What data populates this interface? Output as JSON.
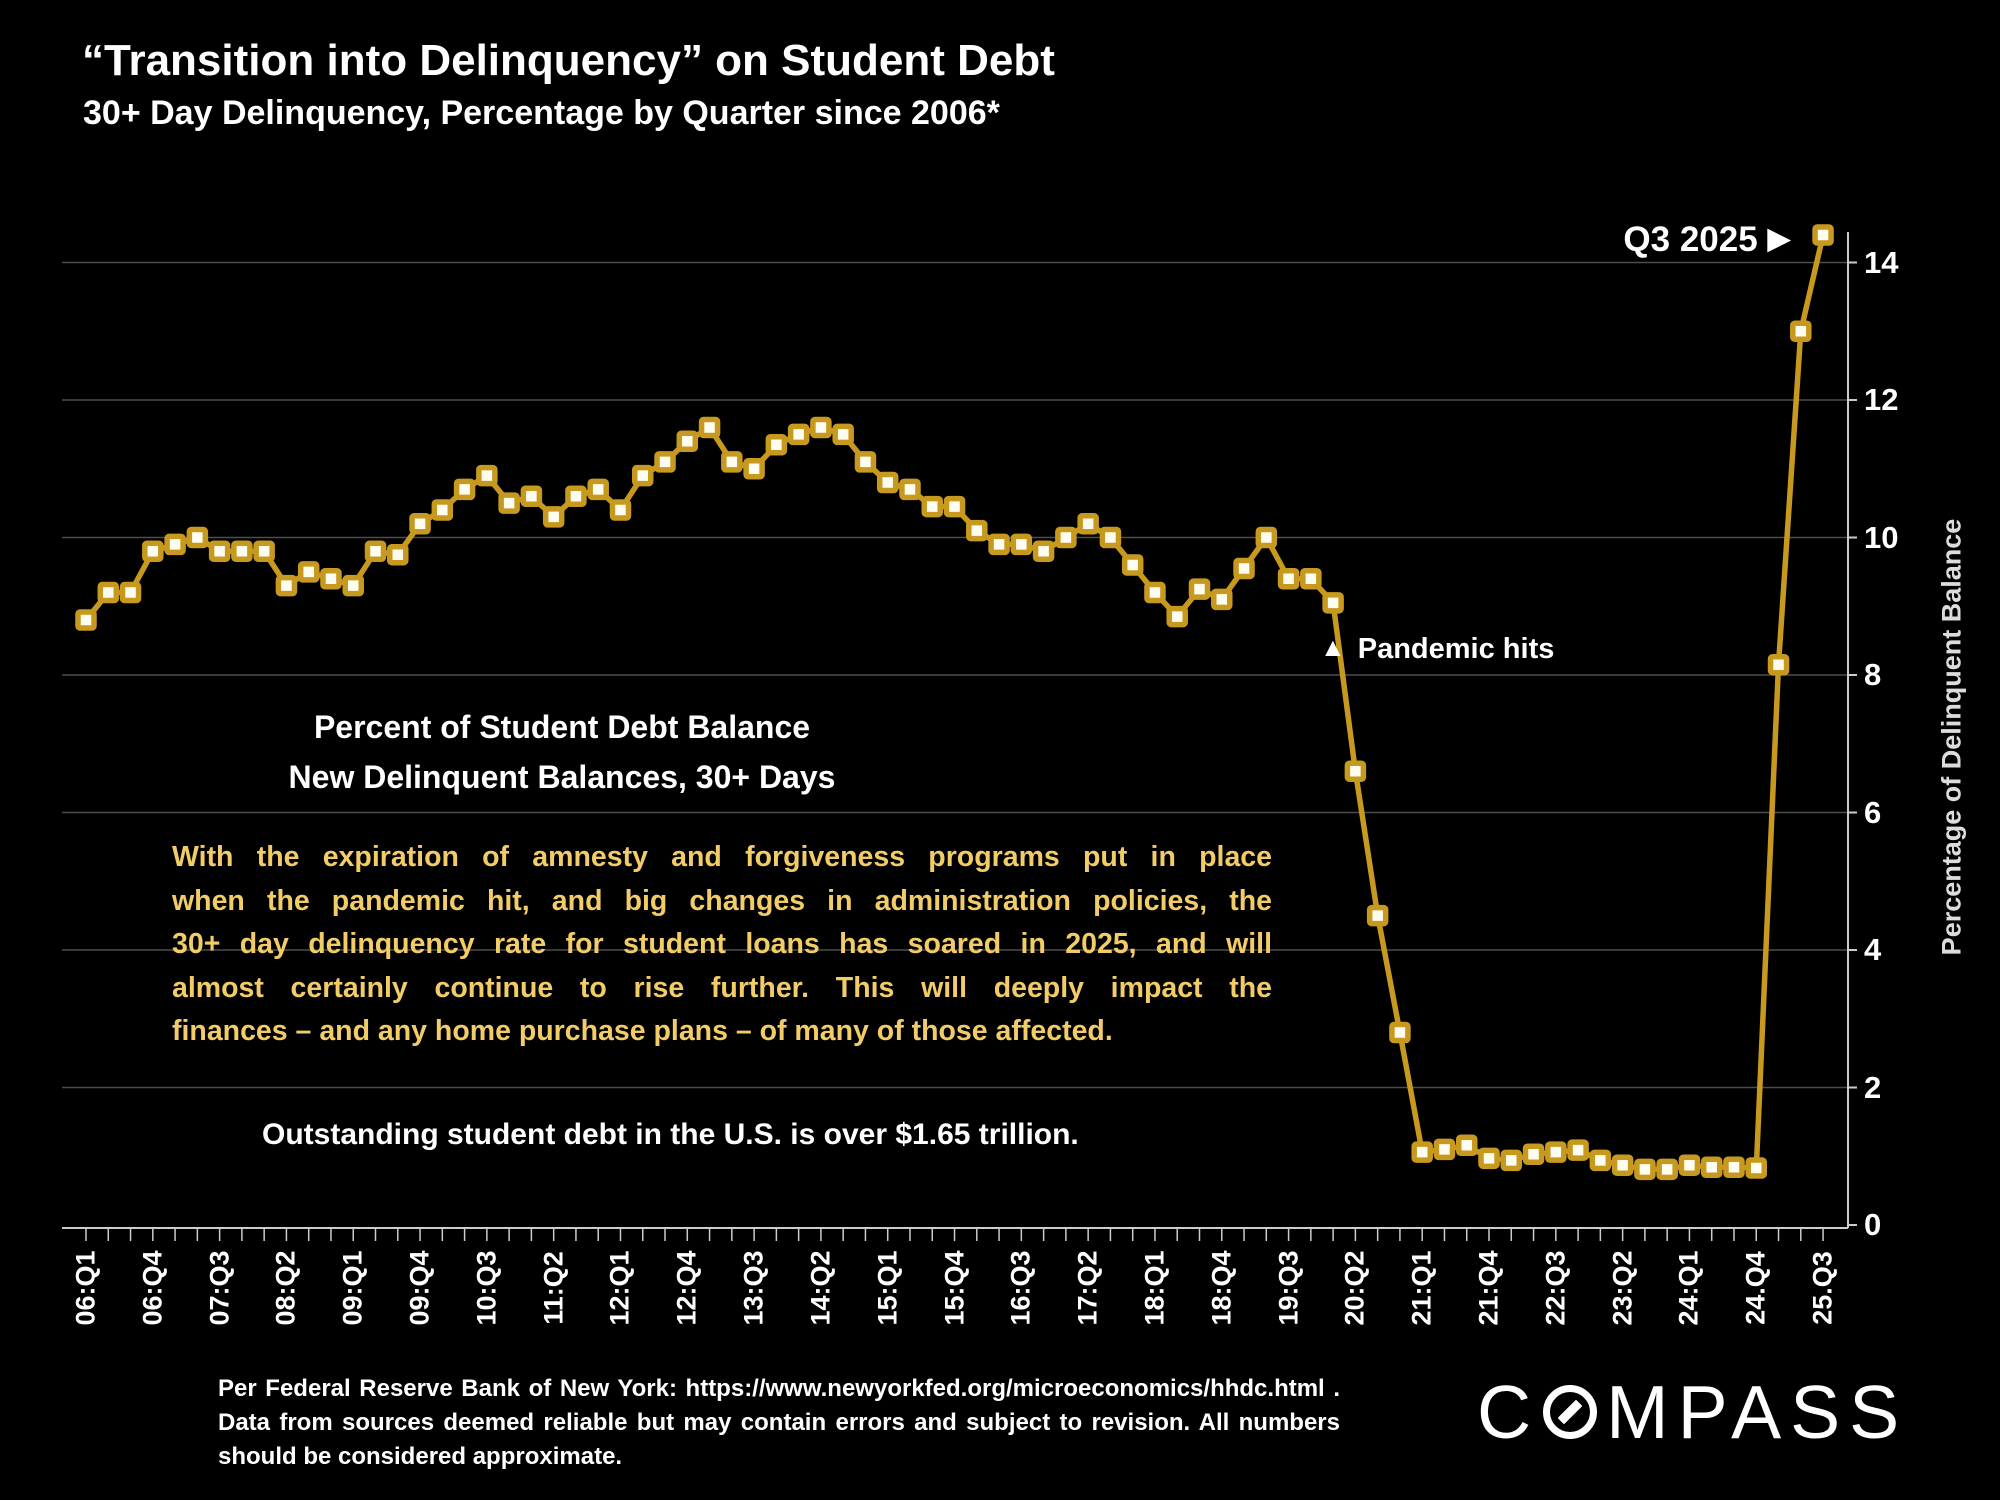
{
  "header": {
    "title": "“Transition into Delinquency” on Student Debt",
    "subtitle": "30+ Day Delinquency, Percentage by Quarter since 2006*"
  },
  "annotations": {
    "latest_label": "Q3 2025",
    "latest_arrow": "▶",
    "pandemic_marker": "▲",
    "pandemic_label": "Pandemic hits"
  },
  "callouts": {
    "center_line1": "Percent of Student Debt Balance",
    "center_line2": "New Delinquent  Balances, 30+ Days",
    "paragraph_lines": [
      "With the expiration of amnesty and forgiveness programs put in place",
      "when the pandemic hit, and big changes in administration policies, the",
      "30+ day delinquency rate for student loans has soared in 2025, and will",
      "almost certainly continue to rise further. This will deeply impact the",
      "finances – and any home purchase plans – of many of those affected."
    ],
    "debt_note": "Outstanding student debt in the U.S. is over $1.65 trillion."
  },
  "footer": {
    "lines": [
      "Per Federal Reserve Bank of New York: https://www.newyorkfed.org/microeconomics/hhdc.html .",
      "Data from sources deemed reliable but may contain errors and subject to revision. All numbers",
      "should be considered approximate."
    ],
    "logo": {
      "prefix": "C",
      "suffix": "MPASS"
    }
  },
  "colors": {
    "background": "#000000",
    "line": "#C7991E",
    "marker_fill": "#FFFDF0",
    "accent_text": "#F2CC66",
    "grid": "#4D4D4D",
    "axis": "#CCCCCC"
  },
  "chart_data": {
    "type": "line",
    "title": "“Transition into Delinquency” on Student Debt",
    "subtitle": "30+ Day Delinquency, Percentage by Quarter since 2006*",
    "ylabel": "Percentage of Delinquent Balance",
    "ylim": [
      0,
      14.5
    ],
    "grid": "horizontal",
    "gridlines": [
      2,
      4,
      6,
      8,
      10,
      12,
      14
    ],
    "y_ticks": [
      14,
      12,
      10,
      8,
      6,
      4,
      2,
      0
    ],
    "x": [
      "06:Q1",
      "06:Q2",
      "06:Q3",
      "06:Q4",
      "07:Q1",
      "07:Q2",
      "07:Q3",
      "07:Q4",
      "08:Q1",
      "08:Q2",
      "08:Q3",
      "08:Q4",
      "09:Q1",
      "09:Q2",
      "09:Q3",
      "09:Q4",
      "10:Q1",
      "10:Q2",
      "10:Q3",
      "10:Q4",
      "11:Q1",
      "11:Q2",
      "11:Q3",
      "11:Q4",
      "12:Q1",
      "12:Q2",
      "12:Q3",
      "12:Q4",
      "13:Q1",
      "13:Q2",
      "13:Q3",
      "13:Q4",
      "14:Q1",
      "14:Q2",
      "14:Q3",
      "14:Q4",
      "15:Q1",
      "15:Q2",
      "15:Q3",
      "15:Q4",
      "16:Q1",
      "16:Q2",
      "16:Q3",
      "16:Q4",
      "17:Q1",
      "17:Q2",
      "17:Q3",
      "17:Q4",
      "18:Q1",
      "18:Q2",
      "18:Q3",
      "18:Q4",
      "19:Q1",
      "19:Q2",
      "19:Q3",
      "19:Q4",
      "20:Q1",
      "20:Q2",
      "20:Q3",
      "20:Q4",
      "21:Q1",
      "21:Q2",
      "21:Q3",
      "21:Q4",
      "22:Q1",
      "22:Q2",
      "22:Q3",
      "22:Q4",
      "23:Q1",
      "23:Q2",
      "23:Q3",
      "23:Q4",
      "24:Q1",
      "24:Q2",
      "24:Q3",
      "24:Q4",
      "25:Q1",
      "25:Q2",
      "25:Q3"
    ],
    "x_tick_labels": [
      "06:Q1",
      "06:Q4",
      "07:Q3",
      "08:Q2",
      "09:Q1",
      "09:Q4",
      "10:Q3",
      "11:Q2",
      "12:Q1",
      "12:Q4",
      "13:Q3",
      "14:Q2",
      "15:Q1",
      "15:Q4",
      "16:Q3",
      "17:Q2",
      "18:Q1",
      "18:Q4",
      "19:Q3",
      "20:Q2",
      "21:Q1",
      "21:Q4",
      "22:Q3",
      "23:Q2",
      "24:Q1",
      "24.Q4",
      "25.Q3"
    ],
    "x_tick_every": 3,
    "series": [
      {
        "name": "30+ day delinquency rate, student loans (%)",
        "values": [
          8.8,
          9.2,
          9.2,
          9.8,
          9.9,
          10.0,
          9.8,
          9.8,
          9.8,
          9.3,
          9.5,
          9.4,
          9.3,
          9.8,
          9.75,
          10.2,
          10.4,
          10.7,
          10.9,
          10.5,
          10.6,
          10.3,
          10.6,
          10.7,
          10.4,
          10.9,
          11.1,
          11.4,
          11.6,
          11.1,
          11.0,
          11.35,
          11.5,
          11.6,
          11.5,
          11.1,
          10.8,
          10.7,
          10.45,
          10.45,
          10.1,
          9.9,
          9.9,
          9.8,
          10.0,
          10.2,
          10.0,
          9.6,
          9.2,
          8.85,
          9.25,
          9.1,
          9.55,
          10.0,
          9.4,
          9.4,
          9.05,
          6.6,
          4.5,
          2.8,
          1.06,
          1.1,
          1.16,
          0.97,
          0.94,
          1.03,
          1.06,
          1.09,
          0.94,
          0.87,
          0.81,
          0.81,
          0.87,
          0.84,
          0.84,
          0.83,
          8.15,
          13.0,
          14.4
        ]
      }
    ],
    "annotations": [
      {
        "text": "Q3 2025 ▶",
        "at_x": "25:Q3",
        "position": "left-of-point"
      },
      {
        "text": "▲ Pandemic hits",
        "at_x": "20:Q1",
        "position": "below-point"
      }
    ]
  }
}
